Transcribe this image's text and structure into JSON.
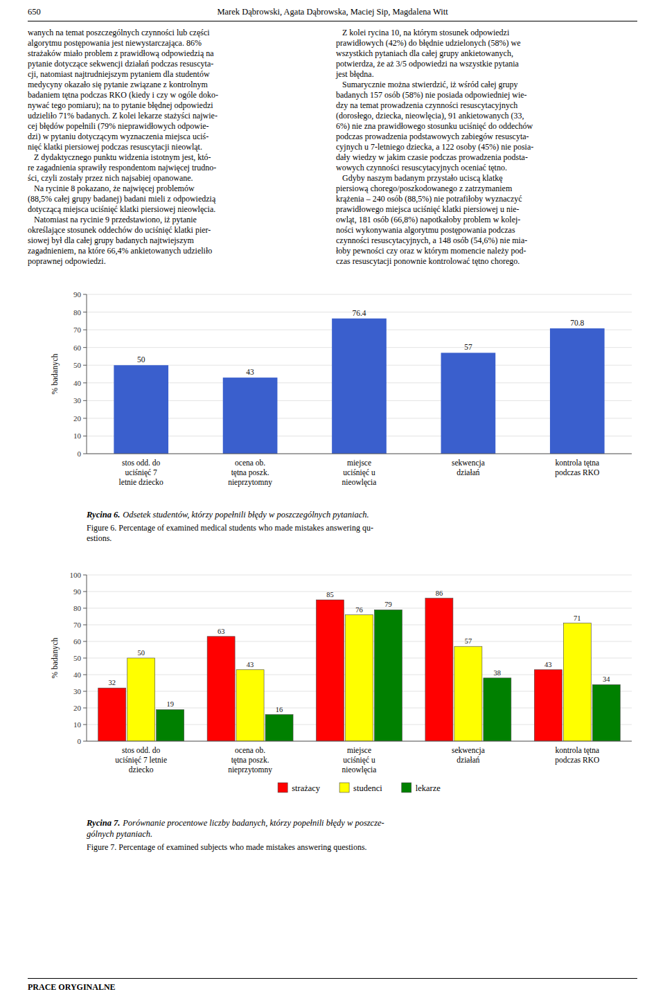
{
  "page": {
    "header_num": "650",
    "header_authors": "Marek Dąbrowski, Agata Dąbrowska, Maciej Sip, Magdalena Witt",
    "col_left_lines": [
      "wanych na temat poszczególnych czynności lub części",
      "algorytmu postępowania jest niewystarczająca. 86%",
      "strażaków miało problem z prawidłową odpowiedzią na",
      "pytanie dotyczące sekwencji działań podczas resuscyta-",
      "cji, natomiast najtrudniejszym pytaniem dla studentów",
      "medycyny okazało się pytanie związane z kontrolnym",
      "badaniem tętna podczas RKO (kiedy i czy w ogóle doko-",
      "nywać tego pomiaru); na to pytanie błędnej odpowiedzi",
      "udzieliło 71% badanych. Z kolei lekarze stażyści najwie-",
      "cej błędów popełnili (79% nieprawidłowych odpowie-",
      "dzi) w pytaniu dotyczącym wyznaczenia miejsca uciś-",
      "nięć klatki piersiowej podczas resuscytacji nieowląt.",
      "   Z dydaktycznego punktu widzenia istotnym jest, któ-",
      "re zagadnienia sprawiły respondentom najwięcej trudno-",
      "ści, czyli zostały przez nich najsabiej opanowane.",
      "   Na rycinie 8 pokazano, że najwięcej problemów",
      "(88,5% całej grupy badanej) badani mieli z odpowiedzią",
      "dotyczącą miejsca uciśnięć klatki piersiowej nieowlęcia.",
      "   Natomiast na rycinie 9 przedstawiono, iż pytanie",
      "określające stosunek oddechów do uciśnięć klatki pier-",
      "siowej był dla całej grupy badanych najtwiejszym",
      "zagadnieniem, na które 66,4% ankietowanych udzieliło",
      "poprawnej odpowiedzi."
    ],
    "col_right_lines": [
      "   Z kolei rycina 10, na którym stosunek odpowiedzi",
      "prawidłowych (42%) do błędnie udzielonych (58%) we",
      "wszystkich pytaniach dla całej grupy ankietowanych,",
      "potwierdza, że aż 3/5 odpowiedzi na wszystkie pytania",
      "jest błędna.",
      "   Sumarycznie można stwierdzić, iż wśród całej grupy",
      "badanych 157 osób (58%) nie posiada odpowiedniej wie-",
      "dzy na temat prowadzenia czynności resuscytacyjnych",
      "(dorosłego, dziecka, nieowlęcia), 91 ankietowanych (33,",
      "6%) nie zna prawidłowego stosunku uciśnięć do oddechów",
      "podczas prowadzenia podstawowych zabiegów resuscyta-",
      "cyjnych u 7-letniego dziecka, a 122 osoby (45%) nie posia-",
      "dały wiedzy w jakim czasie podczas prowadzenia podsta-",
      "wowych czynności resuscytacyjnych oceniać tętno.",
      "   Gdyby naszym badanym przystało uciscą klatkę",
      "piersiową chorego/poszkodowanego z zatrzymaniem",
      "krążenia – 240 osób (88,5%) nie potrafiłoby wyznaczyć",
      "prawidłowego miejsca uciśnięć klatki piersiowej u nie-",
      "owląt, 181 osób (66,8%) napotkałoby problem w kolej-",
      "ności wykonywania algorytmu postępowania podczas",
      "czynności resuscytacyjnych, a 148 osób (54,6%) nie mia-",
      "łoby pewności czy oraz w którym momencie należy pod-",
      "czas resuscytacji ponownie kontrolować tętno chorego."
    ],
    "footer": "PRACE ORYGINALNE"
  },
  "chart_data": [
    {
      "type": "bar",
      "title": "Rycina 6.",
      "subtitle": "Odsetek studentów, którzy popełnili błędy w poszczególnych pytaniach.",
      "annotations": [
        "Figure 6. Percentage of examined medical students who made mistakes answering qu-\nestions."
      ],
      "categories": [
        "stos odd. do\nuciśnięć 7\nletnie dziecko",
        "ocena ob.\ntętna poszk.\nnieprzytomny",
        "miejsce\nuciśnięć u\nnieowlęcia",
        "sekwencja\ndziałań",
        "kontrola tętna\npodczas RKO"
      ],
      "values": [
        50,
        43,
        76.4,
        57,
        70.8
      ],
      "color": "#3A5FCD",
      "ylabel": "% badanych",
      "ylim": [
        0,
        90
      ],
      "yticks": [
        0,
        10,
        20,
        30,
        40,
        50,
        60,
        70,
        80,
        90
      ],
      "grid": true,
      "data_labels": true
    },
    {
      "type": "bar",
      "title": "Rycina 7.",
      "subtitle": "Porównanie procentowe liczby badanych, którzy popełnili błędy w poszcze-\ngólnych pytaniach.",
      "annotations": [
        "Figure 7. Percentage of examined subjects who made mistakes answering questions."
      ],
      "categories": [
        "stos odd. do\nuciśnięć 7 letnie\ndziecko",
        "ocena ob.\ntętna poszk.\nnieprzytomny",
        "miejsce\nuciśnięć u\nnieowlęcia",
        "sekwencja\ndziałań",
        "kontrola tętna\npodczas RKO"
      ],
      "series": [
        {
          "name": "strażacy",
          "color": "#FF0000",
          "values": [
            32,
            63,
            85,
            86,
            43
          ]
        },
        {
          "name": "studenci",
          "color": "#FFFF00",
          "values": [
            50,
            43,
            76,
            57,
            71
          ]
        },
        {
          "name": "lekarze",
          "color": "#008000",
          "values": [
            19,
            16,
            79,
            38,
            34
          ]
        }
      ],
      "ylabel": "% badanych",
      "ylim": [
        0,
        100
      ],
      "yticks": [
        0,
        10,
        20,
        30,
        40,
        50,
        60,
        70,
        80,
        90,
        100
      ],
      "grid": true,
      "legend": "bottom",
      "data_labels": true
    }
  ]
}
